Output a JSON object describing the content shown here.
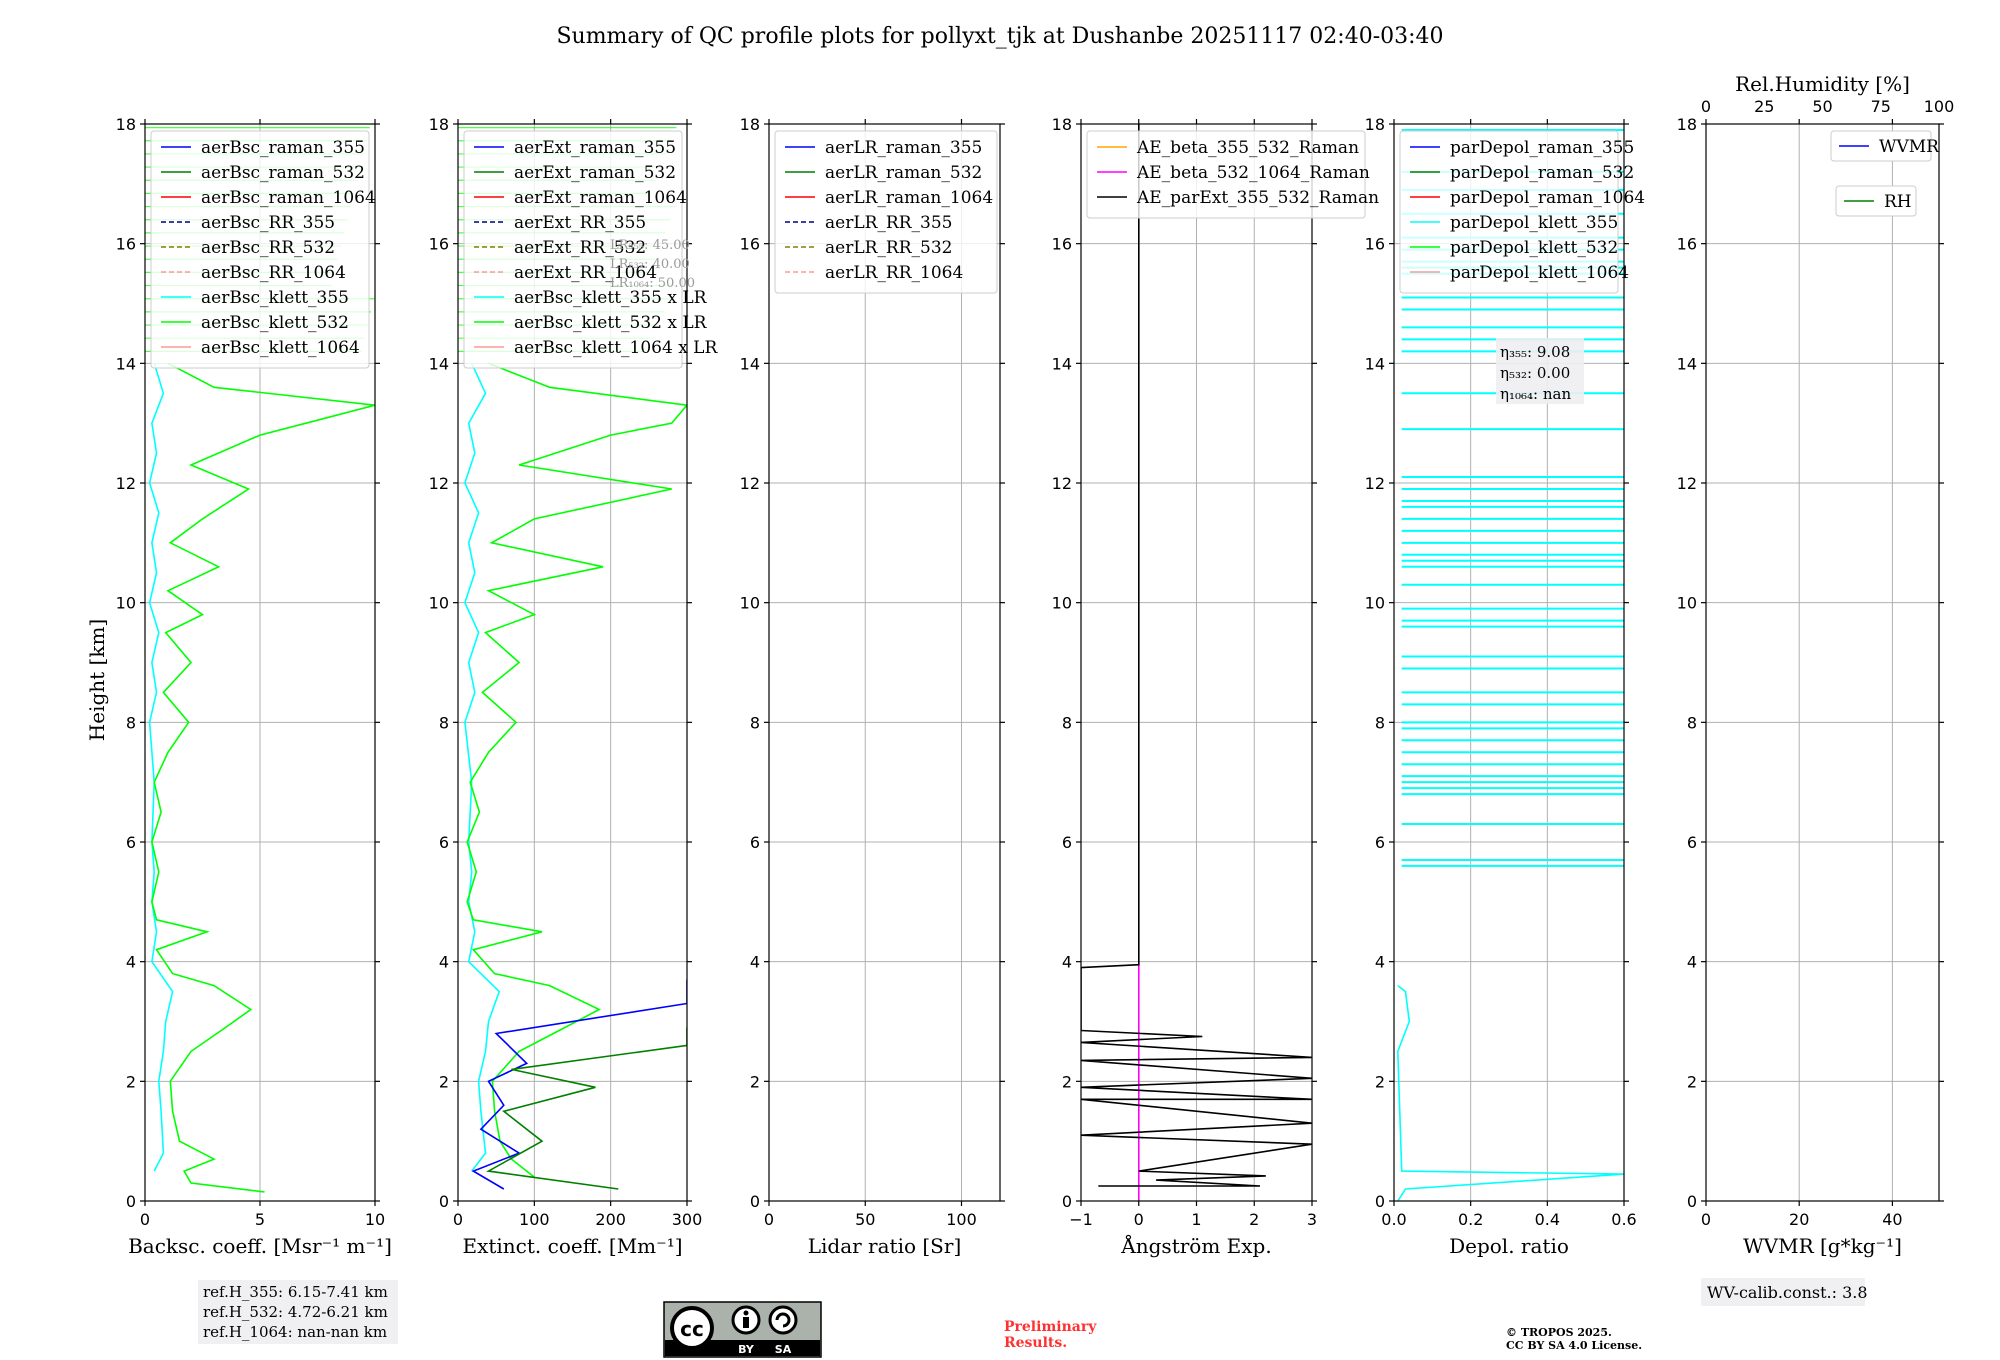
{
  "title": "Summary of QC profile plots for pollyxt_tjk at Dushanbe 20251117 02:40-03:40",
  "ylabel": "Height [km]",
  "ylim": [
    0,
    18
  ],
  "yticks": [
    0,
    2,
    4,
    6,
    8,
    10,
    12,
    14,
    16,
    18
  ],
  "colors": {
    "blue": "#0000ff",
    "green": "#008000",
    "red": "#ff0000",
    "cyan": "#00ffff",
    "lime": "#00ff00",
    "black": "#000000",
    "orange": "#ffa500",
    "magenta": "#ff00ff",
    "darkblue": "#000080",
    "olive": "#808000",
    "salmon": "#ff9999"
  },
  "chart_data": [
    {
      "type": "line",
      "panel": "backscatter",
      "xlabel": "Backsc. coeff. [Msr⁻¹ m⁻¹]",
      "xlim": [
        0,
        10
      ],
      "xticks": [
        0,
        5,
        10
      ],
      "legend": [
        "aerBsc_raman_355",
        "aerBsc_raman_532",
        "aerBsc_raman_1064",
        "aerBsc_RR_355",
        "aerBsc_RR_532",
        "aerBsc_RR_1064",
        "aerBsc_klett_355",
        "aerBsc_klett_532",
        "aerBsc_klett_1064"
      ],
      "series": [
        {
          "name": "aerBsc_klett_355",
          "color": "cyan",
          "points": [
            [
              0.4,
              0.5
            ],
            [
              0.8,
              0.8
            ],
            [
              0.7,
              1.5
            ],
            [
              0.6,
              2.0
            ],
            [
              0.8,
              2.5
            ],
            [
              0.9,
              3.0
            ],
            [
              1.2,
              3.5
            ],
            [
              0.3,
              4.0
            ],
            [
              0.5,
              4.5
            ],
            [
              0.3,
              5.0
            ],
            [
              0.4,
              5.5
            ],
            [
              0.3,
              6.0
            ],
            [
              0.4,
              7.0
            ],
            [
              0.2,
              8.0
            ],
            [
              0.5,
              8.5
            ],
            [
              0.3,
              9.0
            ],
            [
              0.6,
              9.5
            ],
            [
              0.2,
              10.0
            ],
            [
              0.5,
              10.5
            ],
            [
              0.3,
              11.0
            ],
            [
              0.6,
              11.5
            ],
            [
              0.2,
              12.0
            ],
            [
              0.5,
              12.5
            ],
            [
              0.3,
              13.0
            ],
            [
              0.8,
              13.5
            ],
            [
              0.4,
              14.0
            ]
          ]
        },
        {
          "name": "aerBsc_klett_532",
          "color": "lime",
          "points": [
            [
              5.2,
              0.15
            ],
            [
              2.0,
              0.3
            ],
            [
              1.7,
              0.5
            ],
            [
              3.0,
              0.7
            ],
            [
              1.5,
              1.0
            ],
            [
              1.2,
              1.5
            ],
            [
              1.1,
              2.0
            ],
            [
              2.0,
              2.5
            ],
            [
              3.5,
              2.9
            ],
            [
              4.6,
              3.2
            ],
            [
              3.0,
              3.6
            ],
            [
              1.2,
              3.8
            ],
            [
              0.5,
              4.2
            ],
            [
              2.7,
              4.5
            ],
            [
              0.5,
              4.7
            ],
            [
              0.3,
              5.0
            ],
            [
              0.6,
              5.5
            ],
            [
              0.3,
              6.0
            ],
            [
              0.7,
              6.5
            ],
            [
              0.4,
              7.0
            ],
            [
              1.0,
              7.5
            ],
            [
              1.9,
              8.0
            ],
            [
              0.8,
              8.5
            ],
            [
              2.0,
              9.0
            ],
            [
              0.9,
              9.5
            ],
            [
              2.5,
              9.8
            ],
            [
              1.0,
              10.2
            ],
            [
              3.2,
              10.6
            ],
            [
              1.1,
              11.0
            ],
            [
              2.5,
              11.4
            ],
            [
              4.5,
              11.9
            ],
            [
              2.0,
              12.3
            ],
            [
              5.0,
              12.8
            ],
            [
              7.0,
              13.0
            ],
            [
              10.0,
              13.3
            ],
            [
              3.0,
              13.6
            ],
            [
              1.0,
              14.0
            ]
          ]
        }
      ],
      "annotation": [
        "ref.H_355: 6.15-7.41 km",
        "ref.H_532: 4.72-6.21 km",
        "ref.H_1064: nan-nan km"
      ]
    },
    {
      "type": "line",
      "panel": "extinction",
      "xlabel": "Extinct. coeff. [Mm⁻¹]",
      "xlim": [
        0,
        300
      ],
      "xticks": [
        0,
        100,
        200,
        300
      ],
      "legend": [
        "aerExt_raman_355",
        "aerExt_raman_532",
        "aerExt_raman_1064",
        "aerExt_RR_355",
        "aerExt_RR_532",
        "aerExt_RR_1064",
        "aerBsc_klett_355 x LR",
        "aerBsc_klett_532 x LR",
        "aerBsc_klett_1064 x LR"
      ],
      "lr_labels": [
        "LR₃₅₅: 45.00",
        "LR₅₃₂: 40.00",
        "LR₁₀₆₄: 50.00"
      ],
      "series": [
        {
          "name": "aerBsc_klett_355 x LR",
          "color": "cyan",
          "points": [
            [
              18,
              0.5
            ],
            [
              36,
              0.8
            ],
            [
              30,
              1.5
            ],
            [
              27,
              2.0
            ],
            [
              36,
              2.5
            ],
            [
              40,
              3.0
            ],
            [
              54,
              3.5
            ],
            [
              14,
              4.0
            ],
            [
              22,
              4.5
            ],
            [
              14,
              5.0
            ],
            [
              18,
              5.5
            ],
            [
              14,
              6.0
            ],
            [
              18,
              7.0
            ],
            [
              9,
              8.0
            ],
            [
              22,
              8.5
            ],
            [
              14,
              9.0
            ],
            [
              27,
              9.5
            ],
            [
              9,
              10.0
            ],
            [
              22,
              10.5
            ],
            [
              14,
              11.0
            ],
            [
              27,
              11.5
            ],
            [
              9,
              12.0
            ],
            [
              22,
              12.5
            ],
            [
              14,
              13.0
            ],
            [
              36,
              13.5
            ],
            [
              18,
              14.0
            ]
          ]
        },
        {
          "name": "aerBsc_klett_532 x LR",
          "color": "lime",
          "points": [
            [
              100,
              0.4
            ],
            [
              70,
              0.7
            ],
            [
              55,
              1.0
            ],
            [
              48,
              1.5
            ],
            [
              45,
              2.0
            ],
            [
              80,
              2.5
            ],
            [
              140,
              2.9
            ],
            [
              185,
              3.2
            ],
            [
              120,
              3.6
            ],
            [
              48,
              3.8
            ],
            [
              20,
              4.2
            ],
            [
              110,
              4.5
            ],
            [
              20,
              4.7
            ],
            [
              12,
              5.0
            ],
            [
              24,
              5.5
            ],
            [
              12,
              6.0
            ],
            [
              28,
              6.5
            ],
            [
              16,
              7.0
            ],
            [
              40,
              7.5
            ],
            [
              76,
              8.0
            ],
            [
              32,
              8.5
            ],
            [
              80,
              9.0
            ],
            [
              36,
              9.5
            ],
            [
              100,
              9.8
            ],
            [
              40,
              10.2
            ],
            [
              190,
              10.6
            ],
            [
              44,
              11.0
            ],
            [
              100,
              11.4
            ],
            [
              280,
              11.9
            ],
            [
              80,
              12.3
            ],
            [
              200,
              12.8
            ],
            [
              280,
              13.0
            ],
            [
              300,
              13.3
            ],
            [
              120,
              13.6
            ],
            [
              40,
              14.0
            ]
          ]
        },
        {
          "name": "aerExt_raman_355",
          "color": "blue",
          "points": [
            [
              60,
              0.2
            ],
            [
              20,
              0.5
            ],
            [
              80,
              0.8
            ],
            [
              30,
              1.2
            ],
            [
              60,
              1.6
            ],
            [
              40,
              2.0
            ],
            [
              90,
              2.3
            ],
            [
              50,
              2.8
            ],
            [
              300,
              3.3
            ],
            [
              300,
              3.5
            ],
            [
              300,
              3.7
            ]
          ]
        },
        {
          "name": "aerExt_raman_532",
          "color": "green",
          "points": [
            [
              210,
              0.2
            ],
            [
              40,
              0.5
            ],
            [
              110,
              1.0
            ],
            [
              60,
              1.5
            ],
            [
              180,
              1.9
            ],
            [
              70,
              2.2
            ],
            [
              300,
              2.6
            ],
            [
              300,
              2.8
            ],
            [
              300,
              2.9
            ]
          ]
        }
      ]
    },
    {
      "type": "line",
      "panel": "lidar ratio",
      "xlabel": "Lidar ratio [Sr]",
      "xlim": [
        0,
        120
      ],
      "xticks": [
        0,
        50,
        100
      ],
      "legend": [
        "aerLR_raman_355",
        "aerLR_raman_532",
        "aerLR_raman_1064",
        "aerLR_RR_355",
        "aerLR_RR_532",
        "aerLR_RR_1064"
      ],
      "series": []
    },
    {
      "type": "line",
      "panel": "angstrom",
      "xlabel": "Ångström Exp.",
      "xlim": [
        -1,
        3
      ],
      "xticks": [
        -1,
        0,
        1,
        2,
        3
      ],
      "legend": [
        "AE_beta_355_532_Raman",
        "AE_beta_532_1064_Raman",
        "AE_parExt_355_532_Raman"
      ],
      "series": [
        {
          "name": "AE_beta_532_1064_Raman",
          "color": "magenta",
          "points": [
            [
              0,
              0.0
            ],
            [
              0,
              4.0
            ]
          ]
        },
        {
          "name": "AE_parExt_355_532_Raman",
          "color": "black",
          "points": [
            [
              -0.7,
              0.25
            ],
            [
              2.1,
              0.25
            ],
            [
              0.3,
              0.35
            ],
            [
              2.2,
              0.42
            ],
            [
              0,
              0.5
            ],
            [
              3.0,
              0.95
            ],
            [
              -1.0,
              1.1
            ],
            [
              3.0,
              1.3
            ],
            [
              -1.0,
              1.7
            ],
            [
              3.0,
              1.7
            ],
            [
              -1.0,
              1.9
            ],
            [
              3.0,
              2.05
            ],
            [
              -1.0,
              2.35
            ],
            [
              3.0,
              2.4
            ],
            [
              -1.0,
              2.65
            ],
            [
              1.1,
              2.75
            ],
            [
              -1.0,
              2.85
            ],
            [
              -1.0,
              3.9
            ],
            [
              0,
              3.95
            ],
            [
              0,
              4.0
            ],
            [
              0,
              18.0
            ]
          ]
        }
      ]
    },
    {
      "type": "line",
      "panel": "depolarization",
      "xlabel": "Depol. ratio",
      "xlim": [
        0,
        0.6
      ],
      "xticks": [
        0.0,
        0.2,
        0.4,
        0.6
      ],
      "legend": [
        "parDepol_raman_355",
        "parDepol_raman_532",
        "parDepol_raman_1064",
        "parDepol_klett_355",
        "parDepol_klett_532",
        "parDepol_klett_1064"
      ],
      "eta_labels": [
        "η₃₅₅: 9.08",
        "η₅₃₂: 0.00",
        "η₁₀₆₄: nan"
      ],
      "series": [
        {
          "name": "parDepol_klett_355",
          "color": "cyan",
          "points": [
            [
              0.01,
              0.0
            ],
            [
              0.03,
              0.2
            ],
            [
              0.6,
              0.45
            ],
            [
              0.02,
              0.5
            ],
            [
              0.01,
              2.5
            ],
            [
              0.04,
              3.0
            ],
            [
              0.03,
              3.5
            ],
            [
              0.01,
              3.6
            ]
          ]
        }
      ],
      "spike_heights": [
        5.6,
        5.7,
        6.3,
        6.8,
        6.9,
        7.0,
        7.1,
        7.3,
        7.5,
        7.7,
        7.9,
        8.0,
        8.3,
        8.5,
        8.9,
        9.1,
        9.6,
        9.7,
        9.9,
        10.3,
        10.6,
        10.7,
        10.8,
        11.0,
        11.2,
        11.4,
        11.6,
        11.7,
        11.9,
        12.1,
        12.9,
        13.5,
        14.2,
        14.4,
        14.6,
        14.9,
        15.1,
        15.5,
        15.6,
        15.7,
        15.9,
        16.1,
        16.5,
        16.9,
        17.2,
        17.9
      ]
    },
    {
      "type": "line",
      "panel": "water vapor",
      "xlabel": "WVMR [g*kg⁻¹]",
      "xlim": [
        0,
        50
      ],
      "xticks": [
        0,
        20,
        40
      ],
      "top_axis_label": "Rel.Humidity [%]",
      "top_xlim": [
        0,
        100
      ],
      "top_xticks": [
        0,
        25,
        50,
        75,
        100
      ],
      "legend": [
        "WVMR",
        "RH"
      ],
      "series": [],
      "annotation": [
        "WV-calib.const.: 3.8"
      ]
    }
  ],
  "footer": {
    "license_badge": [
      "cc",
      "BY",
      "SA"
    ],
    "preliminary": [
      "Preliminary",
      "Results."
    ],
    "copyright": [
      "© TROPOS 2025.",
      "CC BY SA 4.0 License."
    ]
  }
}
